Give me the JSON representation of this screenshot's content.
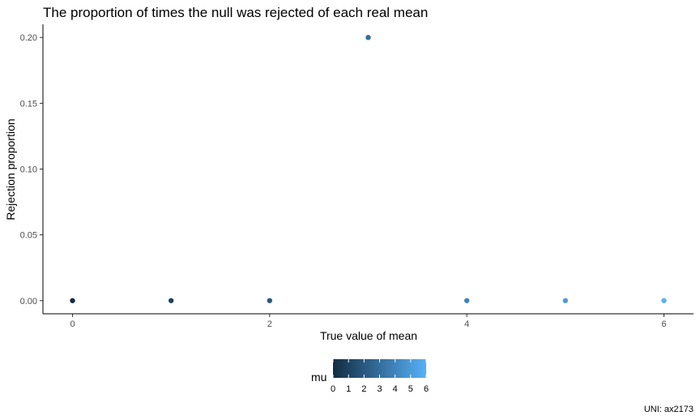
{
  "chart_data": {
    "type": "scatter",
    "title": "The proportion of times the null was rejected of each real mean",
    "xlabel": "True value of mean",
    "ylabel": "Rejection proportion",
    "caption": "UNI: ax2173",
    "x": [
      0,
      1,
      2,
      3,
      4,
      5,
      6
    ],
    "y": [
      0.0,
      0.0,
      0.0,
      0.2,
      0.0,
      0.0,
      0.0
    ],
    "color_by": [
      0,
      1,
      2,
      3,
      4,
      5,
      6
    ],
    "xlim": [
      -0.3,
      6.3
    ],
    "ylim": [
      -0.01,
      0.21
    ],
    "x_ticks": [
      0,
      2,
      4,
      6
    ],
    "x_tick_labels": [
      "0",
      "2",
      "4",
      "6"
    ],
    "y_ticks": [
      0.0,
      0.05,
      0.1,
      0.15,
      0.2
    ],
    "y_tick_labels": [
      "0.00",
      "0.05",
      "0.10",
      "0.15",
      "0.20"
    ],
    "grid": false,
    "legend": {
      "title": "mu",
      "position": "bottom",
      "type": "colorbar",
      "range": [
        0,
        6
      ],
      "ticks": [
        0,
        1,
        2,
        3,
        4,
        5,
        6
      ],
      "tick_labels": [
        "0",
        "1",
        "2",
        "3",
        "4",
        "5",
        "6"
      ],
      "color_low": "#132B43",
      "color_high": "#56B1F7"
    }
  }
}
